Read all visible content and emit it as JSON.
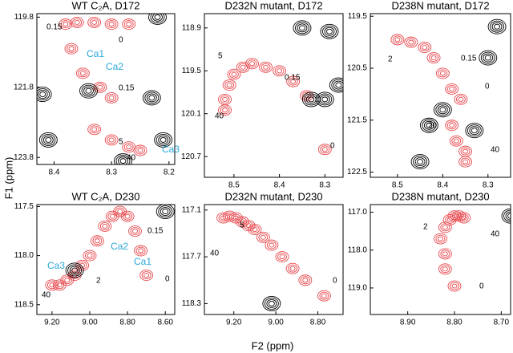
{
  "figure": {
    "ylabel": "F1 (ppm)",
    "xlabel": "F2 (ppm)"
  },
  "chart_data": [
    {
      "type": "nmr",
      "title": "WT C₂A, D172",
      "xlim": [
        8.43,
        8.19
      ],
      "ylim": [
        119.7,
        124.0
      ],
      "xticks": [
        8.4,
        8.3,
        8.2
      ],
      "yticks": [
        119.8,
        121.8,
        123.8
      ],
      "series": [
        {
          "color": "#e8474c",
          "x": [
            8.27,
            8.3,
            8.33,
            8.36,
            8.38,
            8.37,
            8.35,
            8.32,
            8.3,
            8.33,
            8.3,
            8.27,
            8.25
          ],
          "y": [
            120.0,
            120.0,
            119.95,
            119.95,
            120.0,
            120.7,
            121.4,
            121.8,
            122.1,
            123.0,
            123.3,
            123.5,
            123.6
          ]
        },
        {
          "color": "#000000",
          "x": [
            8.42,
            8.34,
            8.23,
            8.22,
            8.41,
            8.28,
            8.21
          ],
          "y": [
            122.0,
            121.9,
            122.1,
            119.8,
            123.3,
            123.9,
            123.3
          ]
        }
      ],
      "annotations": [
        {
          "text": "0.15",
          "color": "#000000"
        },
        {
          "text": "0",
          "color": "#000000"
        },
        {
          "text": "Ca1",
          "color": "#2aa8d8"
        },
        {
          "text": "Ca2",
          "color": "#2aa8d8"
        },
        {
          "text": "0.15",
          "color": "#000000"
        },
        {
          "text": "5",
          "color": "#000000"
        },
        {
          "text": "40",
          "color": "#000000"
        },
        {
          "text": "Ca3",
          "color": "#2aa8d8"
        }
      ]
    },
    {
      "type": "nmr",
      "title": "D232N mutant, D172",
      "xlim": [
        8.565,
        8.26
      ],
      "ylim": [
        118.7,
        120.99
      ],
      "xticks": [
        8.5,
        8.4,
        8.3
      ],
      "yticks": [
        118.9,
        119.5,
        120.1,
        120.7
      ],
      "series": [
        {
          "color": "#e8474c",
          "x": [
            8.3,
            8.34,
            8.37,
            8.4,
            8.43,
            8.46,
            8.48,
            8.5,
            8.51,
            8.52,
            8.52
          ],
          "y": [
            120.6,
            119.85,
            119.65,
            119.5,
            119.45,
            119.4,
            119.45,
            119.55,
            119.7,
            119.9,
            120.05
          ]
        },
        {
          "color": "#000000",
          "x": [
            8.33,
            8.3,
            8.27,
            8.35,
            8.29
          ],
          "y": [
            119.9,
            119.9,
            119.7,
            118.9,
            118.95
          ]
        }
      ],
      "annotations": [
        {
          "text": "5",
          "color": "#000000"
        },
        {
          "text": "0.15",
          "color": "#000000"
        },
        {
          "text": "40",
          "color": "#000000"
        },
        {
          "text": "0",
          "color": "#000000"
        }
      ]
    },
    {
      "type": "nmr",
      "title": "D238N mutant, D172",
      "xlim": [
        8.56,
        8.25
      ],
      "ylim": [
        119.45,
        122.6
      ],
      "xticks": [
        8.5,
        8.4,
        8.3
      ],
      "yticks": [
        119.5,
        120.5,
        121.5,
        122.5
      ],
      "series": [
        {
          "color": "#e8474c",
          "x": [
            8.5,
            8.47,
            8.44,
            8.42,
            8.4,
            8.38,
            8.36,
            8.38,
            8.37,
            8.35,
            8.35
          ],
          "y": [
            119.95,
            120.0,
            120.1,
            120.3,
            120.6,
            120.9,
            121.1,
            121.6,
            121.9,
            122.1,
            122.3
          ]
        },
        {
          "color": "#000000",
          "x": [
            8.28,
            8.3,
            8.4,
            8.43,
            8.33,
            8.45
          ],
          "y": [
            119.7,
            120.3,
            121.3,
            121.6,
            121.7,
            122.3
          ]
        }
      ],
      "annotations": [
        {
          "text": "2",
          "color": "#000000"
        },
        {
          "text": "0.15",
          "color": "#000000"
        },
        {
          "text": "0",
          "color": "#000000"
        },
        {
          "text": "20",
          "color": "#000000"
        },
        {
          "text": "40",
          "color": "#000000"
        }
      ]
    },
    {
      "type": "nmr",
      "title": "WT C₂A,  D230",
      "xlim": [
        9.28,
        8.55
      ],
      "ylim": [
        117.48,
        118.6
      ],
      "xticks": [
        {
          "value": 9.2,
          "label": "9.20"
        },
        {
          "value": 9.0,
          "label": "9.00"
        },
        {
          "value": 8.8,
          "label": "8.80"
        },
        {
          "value": 8.6,
          "label": "8.60"
        }
      ],
      "yticks": [
        117.5,
        {
          "value": 118.0,
          "label": "118.0"
        },
        118.5
      ],
      "series": [
        {
          "color": "#e8474c",
          "x": [
            8.7,
            8.73,
            8.76,
            8.8,
            8.84,
            8.88,
            8.92,
            8.96,
            9.0,
            9.04,
            9.08,
            9.12,
            9.16,
            9.2
          ],
          "y": [
            118.2,
            117.95,
            117.75,
            117.6,
            117.55,
            117.6,
            117.7,
            117.85,
            118.0,
            118.1,
            118.2,
            118.25,
            118.3,
            118.3
          ]
        },
        {
          "color": "#000000",
          "x": [
            9.08,
            8.6
          ],
          "y": [
            118.15,
            117.55
          ]
        }
      ],
      "annotations": [
        {
          "text": "0.15",
          "color": "#000000"
        },
        {
          "text": "Ca2",
          "color": "#2aa8d8"
        },
        {
          "text": "Ca1",
          "color": "#2aa8d8"
        },
        {
          "text": "Ca3",
          "color": "#2aa8d8"
        },
        {
          "text": "0",
          "color": "#000000"
        },
        {
          "text": "2",
          "color": "#000000"
        },
        {
          "text": "40",
          "color": "#000000"
        }
      ]
    },
    {
      "type": "nmr",
      "title": "D232N mutant, D230",
      "xlim": [
        9.34,
        8.68
      ],
      "ylim": [
        117.03,
        118.44
      ],
      "xticks": [
        {
          "value": 9.2,
          "label": "9.20"
        },
        {
          "value": 9.0,
          "label": "9.00"
        },
        {
          "value": 8.8,
          "label": "8.80"
        }
      ],
      "yticks": [
        117.1,
        117.7,
        118.3
      ],
      "series": [
        {
          "color": "#e8474c",
          "x": [
            8.77,
            8.86,
            8.92,
            8.97,
            9.02,
            9.06,
            9.1,
            9.13,
            9.16,
            9.19,
            9.22,
            9.25
          ],
          "y": [
            118.2,
            118.0,
            117.85,
            117.7,
            117.55,
            117.45,
            117.35,
            117.3,
            117.25,
            117.2,
            117.18,
            117.2
          ]
        },
        {
          "color": "#000000",
          "x": [
            9.02
          ],
          "y": [
            118.3
          ]
        }
      ],
      "annotations": [
        {
          "text": "5",
          "color": "#000000"
        },
        {
          "text": "40",
          "color": "#000000"
        },
        {
          "text": "0",
          "color": "#000000"
        }
      ]
    },
    {
      "type": "nmr",
      "title": "D238N mutant, D230",
      "xlim": [
        8.98,
        8.68
      ],
      "ylim": [
        116.8,
        119.7
      ],
      "xticks": [
        {
          "value": 8.9,
          "label": "8.90"
        },
        {
          "value": 8.8,
          "label": "8.80"
        },
        {
          "value": 8.7,
          "label": "8.70"
        }
      ],
      "yticks": [
        {
          "value": 117.0,
          "label": "117.0"
        },
        {
          "value": 118.0,
          "label": "118.0"
        },
        {
          "value": 119.0,
          "label": "119.0"
        }
      ],
      "series": [
        {
          "color": "#e8474c",
          "x": [
            8.8,
            8.82,
            8.82,
            8.83,
            8.82,
            8.81,
            8.8,
            8.79,
            8.78
          ],
          "y": [
            118.95,
            118.5,
            118.1,
            117.7,
            117.4,
            117.2,
            117.1,
            117.1,
            117.15
          ]
        },
        {
          "color": "#000000",
          "x": [
            8.68
          ],
          "y": [
            117.1
          ]
        }
      ],
      "annotations": [
        {
          "text": "2",
          "color": "#000000"
        },
        {
          "text": "40",
          "color": "#000000"
        },
        {
          "text": "0",
          "color": "#000000"
        }
      ]
    }
  ]
}
